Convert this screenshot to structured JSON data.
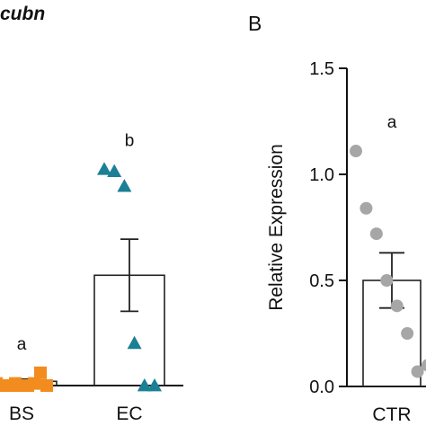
{
  "panel_a": {
    "title": "cubn"
  },
  "panel_b": {
    "letter": "B"
  },
  "chart_data": [
    {
      "type": "bar",
      "panel": "A",
      "title": "cubn",
      "categories": [
        "BS",
        "EC"
      ],
      "values": [
        0.02,
        0.52
      ],
      "errors": [
        0.01,
        0.17
      ],
      "significance_letters": [
        "a",
        "b"
      ],
      "ylim": [
        0,
        1.5
      ],
      "points": [
        {
          "category": "BS",
          "marker": "square",
          "color": "#F28C1E",
          "y": [
            0.01,
            0.0,
            0.0,
            0.01,
            0.0,
            0.0,
            0.01,
            0.06,
            0.0
          ]
        },
        {
          "category": "EC",
          "marker": "triangle",
          "color": "#1B7F95",
          "y": [
            1.02,
            1.01,
            0.94,
            0.2,
            0.0,
            0.0
          ]
        }
      ],
      "xlabel": "",
      "ylabel": ""
    },
    {
      "type": "bar",
      "panel": "B",
      "categories": [
        "CTR"
      ],
      "values": [
        0.5
      ],
      "errors": [
        0.13
      ],
      "significance_letters": [
        "a"
      ],
      "ylim": [
        0,
        1.5
      ],
      "yticks": [
        "0.0",
        "0.5",
        "1.0",
        "1.5"
      ],
      "ylabel": "Relative Expression",
      "xlabel": "",
      "points": [
        {
          "category": "CTR",
          "marker": "circle",
          "color": "#A6A6A6",
          "y": [
            1.11,
            0.84,
            0.72,
            0.5,
            0.38,
            0.25,
            0.07,
            0.1
          ]
        }
      ]
    }
  ]
}
